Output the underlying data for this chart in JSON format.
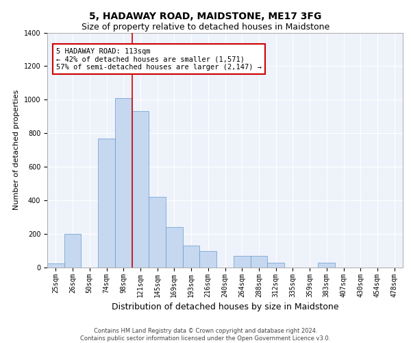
{
  "title": "5, HADAWAY ROAD, MAIDSTONE, ME17 3FG",
  "subtitle": "Size of property relative to detached houses in Maidstone",
  "xlabel": "Distribution of detached houses by size in Maidstone",
  "ylabel": "Number of detached properties",
  "categories": [
    "25sqm",
    "26sqm",
    "50sqm",
    "74sqm",
    "98sqm",
    "121sqm",
    "145sqm",
    "169sqm",
    "193sqm",
    "216sqm",
    "240sqm",
    "264sqm",
    "288sqm",
    "312sqm",
    "335sqm",
    "359sqm",
    "383sqm",
    "407sqm",
    "430sqm",
    "454sqm",
    "478sqm"
  ],
  "bar_heights": [
    25,
    200,
    0,
    770,
    1010,
    930,
    420,
    240,
    130,
    100,
    0,
    70,
    70,
    30,
    0,
    0,
    30,
    0,
    0,
    0,
    0
  ],
  "bar_color": "#c5d8f0",
  "bar_edge_color": "#6699cc",
  "vline_x_idx": 4,
  "vline_color": "#cc0000",
  "ylim": [
    0,
    1400
  ],
  "yticks": [
    0,
    200,
    400,
    600,
    800,
    1000,
    1200,
    1400
  ],
  "annotation_text_line1": "5 HADAWAY ROAD: 113sqm",
  "annotation_text_line2": "← 42% of detached houses are smaller (1,571)",
  "annotation_text_line3": "57% of semi-detached houses are larger (2,147) →",
  "annotation_box_color": "#cc0000",
  "footer_text": "Contains HM Land Registry data © Crown copyright and database right 2024.\nContains public sector information licensed under the Open Government Licence v3.0.",
  "bg_color": "#eef2fa",
  "grid_color": "#ffffff",
  "title_fontsize": 10,
  "subtitle_fontsize": 9,
  "xlabel_fontsize": 9,
  "ylabel_fontsize": 8,
  "tick_fontsize": 7,
  "annot_fontsize": 7.5,
  "footer_fontsize": 6
}
